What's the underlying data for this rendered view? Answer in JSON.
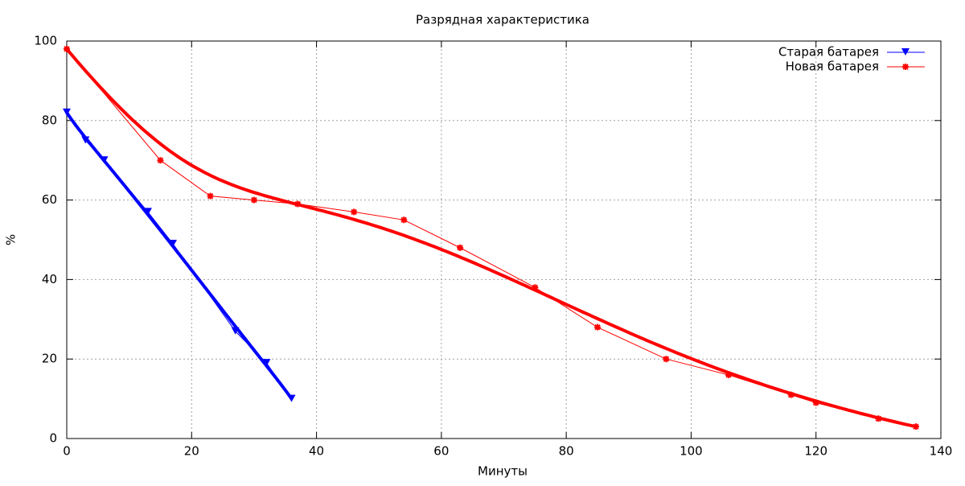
{
  "chart_data": {
    "type": "line",
    "title": "Разрядная характеристика",
    "x_label": "Минуты",
    "y_label": "%",
    "xlim": [
      0,
      140
    ],
    "xticks": [
      0,
      20,
      40,
      60,
      80,
      100,
      120,
      140
    ],
    "ylim": [
      0,
      100
    ],
    "yticks": [
      0,
      20,
      40,
      60,
      80,
      100
    ],
    "grid": true,
    "legend": "top-right",
    "smooth": "bezier",
    "series": [
      {
        "name": "Старая батарея",
        "color": "#0000ff",
        "marker": "triangle-down",
        "x": [
          0,
          3,
          6,
          13,
          17,
          27,
          32,
          36
        ],
        "values": [
          82,
          75,
          70,
          57,
          49,
          27,
          19,
          10
        ]
      },
      {
        "name": "Новая батарея",
        "color": "#ff0000",
        "marker": "star",
        "x": [
          0,
          15,
          23,
          30,
          37,
          46,
          54,
          63,
          75,
          85,
          96,
          106,
          116,
          120,
          130,
          136
        ],
        "values": [
          98,
          70,
          61,
          60,
          59,
          57,
          55,
          48,
          38,
          28,
          20,
          16,
          11,
          9,
          5,
          3
        ]
      }
    ]
  }
}
